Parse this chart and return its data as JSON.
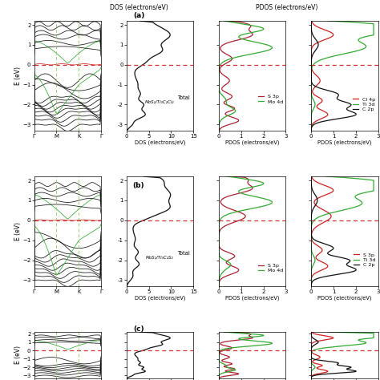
{
  "title_top_dos": "DOS (electrons/eV)",
  "title_top_pdos": "PDOS (electrons/eV)",
  "panel_a_label": "(a)",
  "panel_b_label": "(b)",
  "panel_c_label": "(c)",
  "mos2_ti3c2cl2_label": "MoS₂/Ti₃C₂Cl₂",
  "mos2_ti3c2s2_label": "MoS₂/Ti₃C₂S₂",
  "dos_xlabel": "DOS (electrons/eV)",
  "pdos_xlabel": "PDOS (electrons/eV)",
  "eV_label": "E (eV)",
  "kpoints": [
    "Γ",
    "M",
    "K",
    "Γ"
  ],
  "ylim": [
    -3.3,
    2.2
  ],
  "dos_xlim": [
    0,
    15
  ],
  "pdos_xlim": [
    0,
    3
  ],
  "fermi_color": "#cc3333",
  "fermi_lw": 1.0,
  "band_color_black": "#111111",
  "band_color_green": "#33aa33",
  "band_color_red": "#cc2222",
  "s3p_color": "#aa2233",
  "mo4d_color": "#33aa33",
  "cl4p_color": "#cc2222",
  "ti3d_color": "#33aa33",
  "c2p_color": "#111111",
  "s3p_b_color": "#cc2222",
  "total_color": "#111111",
  "bg_color": "#ffffff"
}
